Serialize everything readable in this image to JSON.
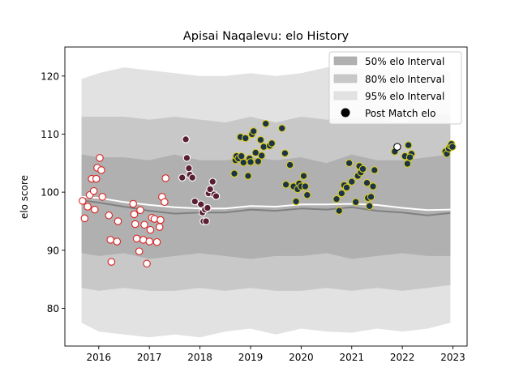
{
  "chart_data": {
    "type": "scatter",
    "title": "Apisai Naqalevu: elo History",
    "xlabel": "",
    "ylabel": "elo score",
    "xlim": [
      2015.33,
      2023.28
    ],
    "ylim": [
      73.5,
      125
    ],
    "x_ticks": [
      2016,
      2017,
      2018,
      2019,
      2020,
      2021,
      2022,
      2023
    ],
    "y_ticks": [
      80,
      90,
      100,
      110,
      120
    ],
    "legend_position": "top-right",
    "legend": [
      {
        "label": "50% elo Interval",
        "kind": "band",
        "color": "#b0b0b0"
      },
      {
        "label": "80% elo Interval",
        "kind": "band",
        "color": "#c8c8c8"
      },
      {
        "label": "95% elo Interval",
        "kind": "band",
        "color": "#e2e2e2"
      },
      {
        "label": "Post Match elo",
        "kind": "dot",
        "color": "#000000"
      }
    ],
    "bands": {
      "x": [
        2015.66,
        2016.0,
        2016.5,
        2017.0,
        2017.5,
        2018.0,
        2018.5,
        2019.0,
        2019.5,
        2020.0,
        2020.5,
        2021.0,
        2021.5,
        2022.0,
        2022.5,
        2022.95
      ],
      "p95_upper": [
        119.5,
        120.5,
        121.5,
        121.0,
        120.5,
        120.0,
        120.0,
        120.5,
        120.0,
        120.5,
        121.5,
        121.5,
        121.0,
        121.5,
        121.0,
        120.8
      ],
      "p95_lower": [
        77.5,
        76.0,
        75.5,
        75.0,
        75.5,
        75.0,
        76.0,
        76.5,
        75.5,
        76.5,
        76.0,
        75.8,
        76.5,
        76.0,
        76.5,
        77.5
      ],
      "p80_upper": [
        113.0,
        113.0,
        113.0,
        112.5,
        113.0,
        112.5,
        112.0,
        113.0,
        112.0,
        113.0,
        112.5,
        113.0,
        112.5,
        112.0,
        113.0,
        113.5
      ],
      "p80_lower": [
        83.5,
        83.0,
        83.5,
        83.0,
        83.0,
        83.5,
        83.0,
        83.5,
        83.0,
        83.0,
        83.5,
        83.0,
        83.5,
        83.0,
        83.5,
        84.0
      ],
      "p50_upper": [
        106.5,
        106.0,
        106.0,
        105.5,
        106.5,
        105.5,
        105.5,
        106.0,
        105.5,
        106.0,
        105.0,
        106.5,
        105.5,
        105.5,
        106.0,
        106.5
      ],
      "p50_lower": [
        89.5,
        89.0,
        89.5,
        88.5,
        89.0,
        89.5,
        89.0,
        88.5,
        89.0,
        89.0,
        89.5,
        88.5,
        89.0,
        89.5,
        89.0,
        89.0
      ],
      "median": [
        98.6,
        98.2,
        97.5,
        96.8,
        96.3,
        96.5,
        96.5,
        97.0,
        96.8,
        97.2,
        97.0,
        97.4,
        96.8,
        96.5,
        96.0,
        96.4
      ],
      "mean": [
        99.2,
        99.0,
        98.3,
        97.8,
        97.4,
        97.2,
        97.2,
        97.6,
        97.5,
        97.9,
        97.9,
        98.0,
        97.8,
        97.3,
        96.9,
        97.0
      ]
    },
    "series": [
      {
        "fill": "#ffffff",
        "edge": "#dd2222",
        "points": [
          [
            2015.68,
            98.5
          ],
          [
            2015.72,
            95.5
          ],
          [
            2015.78,
            97.5
          ],
          [
            2015.82,
            99.5
          ],
          [
            2015.86,
            102.3
          ],
          [
            2015.9,
            100.2
          ],
          [
            2015.92,
            97.0
          ],
          [
            2015.95,
            102.3
          ],
          [
            2015.97,
            104.2
          ],
          [
            2016.02,
            105.9
          ],
          [
            2016.05,
            103.8
          ],
          [
            2016.07,
            99.2
          ],
          [
            2016.2,
            96.0
          ],
          [
            2016.23,
            91.8
          ],
          [
            2016.25,
            88.0
          ],
          [
            2016.36,
            91.5
          ],
          [
            2016.38,
            95.0
          ],
          [
            2016.68,
            98.0
          ],
          [
            2016.7,
            96.2
          ],
          [
            2016.72,
            94.5
          ],
          [
            2016.75,
            92.0
          ],
          [
            2016.8,
            89.8
          ],
          [
            2016.82,
            96.9
          ],
          [
            2016.88,
            91.8
          ],
          [
            2016.9,
            94.4
          ],
          [
            2016.95,
            87.7
          ],
          [
            2017.0,
            91.5
          ],
          [
            2017.02,
            93.5
          ],
          [
            2017.05,
            95.6
          ],
          [
            2017.1,
            95.4
          ],
          [
            2017.15,
            91.4
          ],
          [
            2017.2,
            94.0
          ],
          [
            2017.22,
            95.2
          ],
          [
            2017.25,
            99.2
          ],
          [
            2017.3,
            98.3
          ],
          [
            2017.32,
            102.4
          ]
        ]
      },
      {
        "fill": "#5a1f33",
        "edge": "#ffffff",
        "points": [
          [
            2017.65,
            102.5
          ],
          [
            2017.72,
            109.1
          ],
          [
            2017.74,
            105.9
          ],
          [
            2017.78,
            104.1
          ],
          [
            2017.8,
            103.0
          ],
          [
            2017.85,
            102.5
          ],
          [
            2017.9,
            98.4
          ],
          [
            2018.02,
            97.9
          ],
          [
            2018.05,
            96.5
          ],
          [
            2018.07,
            95.0
          ],
          [
            2018.1,
            97.0
          ],
          [
            2018.12,
            95.0
          ],
          [
            2018.15,
            97.3
          ],
          [
            2018.17,
            99.8
          ],
          [
            2018.2,
            100.5
          ],
          [
            2018.25,
            101.8
          ],
          [
            2018.28,
            99.6
          ],
          [
            2018.32,
            99.3
          ]
        ]
      },
      {
        "fill": "#1c3448",
        "edge": "#d8cc1c",
        "points": [
          [
            2018.68,
            103.2
          ],
          [
            2018.7,
            105.5
          ],
          [
            2018.72,
            106.2
          ],
          [
            2018.76,
            105.8
          ],
          [
            2018.8,
            109.5
          ],
          [
            2018.82,
            106.2
          ],
          [
            2018.86,
            105.1
          ],
          [
            2018.9,
            109.3
          ],
          [
            2018.95,
            102.8
          ],
          [
            2018.98,
            105.8
          ],
          [
            2019.0,
            105.2
          ],
          [
            2019.03,
            110.0
          ],
          [
            2019.06,
            110.5
          ],
          [
            2019.1,
            106.8
          ],
          [
            2019.15,
            105.3
          ],
          [
            2019.2,
            109.0
          ],
          [
            2019.22,
            106.3
          ],
          [
            2019.26,
            107.8
          ],
          [
            2019.3,
            111.8
          ],
          [
            2019.38,
            108.0
          ],
          [
            2019.42,
            108.4
          ],
          [
            2019.62,
            111.0
          ],
          [
            2019.68,
            106.7
          ],
          [
            2019.7,
            101.3
          ],
          [
            2019.78,
            104.7
          ],
          [
            2019.85,
            101.0
          ],
          [
            2019.9,
            98.4
          ],
          [
            2019.93,
            100.5
          ],
          [
            2019.96,
            101.5
          ],
          [
            2020.0,
            101.0
          ],
          [
            2020.05,
            102.8
          ],
          [
            2020.08,
            101.0
          ],
          [
            2020.12,
            99.5
          ],
          [
            2020.7,
            98.8
          ],
          [
            2020.75,
            96.8
          ],
          [
            2020.8,
            99.8
          ],
          [
            2020.85,
            101.2
          ],
          [
            2020.9,
            100.8
          ],
          [
            2020.95,
            105.0
          ],
          [
            2021.0,
            101.8
          ],
          [
            2021.08,
            98.3
          ],
          [
            2021.12,
            102.8
          ],
          [
            2021.15,
            104.5
          ],
          [
            2021.18,
            103.4
          ],
          [
            2021.22,
            104.0
          ],
          [
            2021.3,
            101.6
          ],
          [
            2021.32,
            99.0
          ],
          [
            2021.35,
            97.6
          ],
          [
            2021.38,
            99.2
          ],
          [
            2021.42,
            101.0
          ],
          [
            2021.45,
            103.8
          ],
          [
            2021.85,
            107.0
          ],
          [
            2022.05,
            106.2
          ],
          [
            2022.12,
            108.1
          ],
          [
            2022.1,
            104.9
          ],
          [
            2022.18,
            106.6
          ],
          [
            2022.15,
            106.0
          ],
          [
            2022.85,
            107.0
          ],
          [
            2022.88,
            106.6
          ],
          [
            2022.92,
            107.5
          ],
          [
            2022.95,
            108.0
          ],
          [
            2022.97,
            108.3
          ],
          [
            2022.99,
            107.8
          ]
        ]
      },
      {
        "fill": "#ffffff",
        "edge": "#000000",
        "points": [
          [
            2021.9,
            107.8
          ]
        ]
      }
    ]
  }
}
